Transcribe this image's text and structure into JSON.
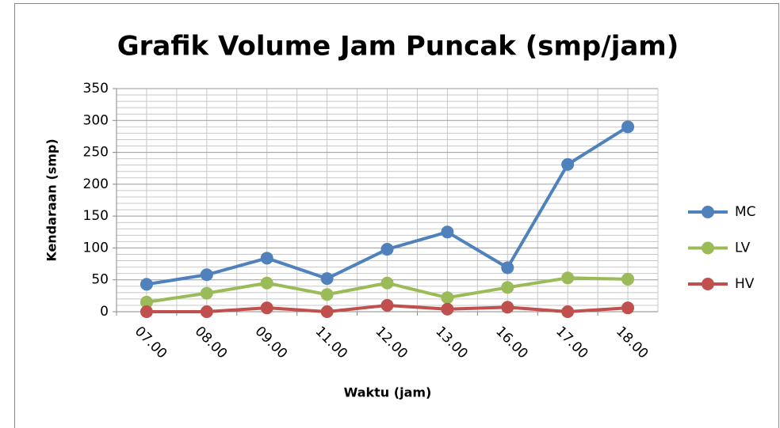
{
  "chart_data": {
    "type": "line",
    "title": "Grafik Volume Jam Puncak (smp/jam)",
    "x_label": "Waktu (jam)",
    "y_label": "Kendaraan (smp)",
    "categories": [
      "07.00",
      "08.00",
      "09.00",
      "11.00",
      "12.00",
      "13.00",
      "16.00",
      "17.00",
      "18.00"
    ],
    "series": [
      {
        "name": "MC",
        "color": "#4f81bd",
        "values": [
          43,
          58,
          84,
          52,
          98,
          125,
          69,
          231,
          290
        ]
      },
      {
        "name": "LV",
        "color": "#9bbb59",
        "values": [
          15,
          29,
          45,
          27,
          45,
          22,
          38,
          53,
          51
        ]
      },
      {
        "name": "HV",
        "color": "#c0504d",
        "values": [
          0,
          0,
          6,
          0,
          10,
          4,
          7,
          0,
          6
        ]
      }
    ],
    "ylim": [
      0,
      350
    ],
    "yticks": [
      0,
      50,
      100,
      150,
      200,
      250,
      300,
      350
    ],
    "grid": true,
    "legend": "right"
  }
}
